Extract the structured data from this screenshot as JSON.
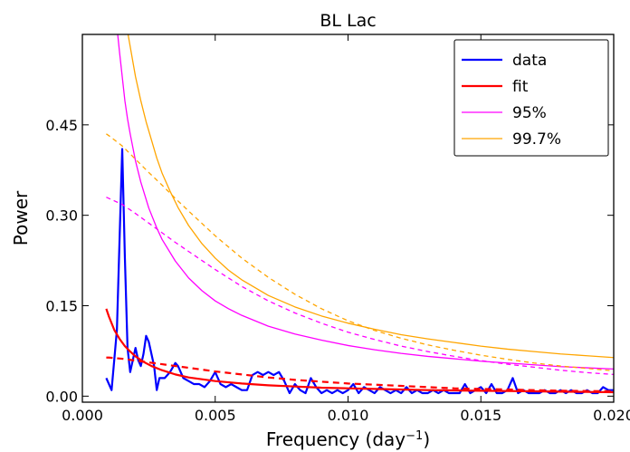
{
  "chart_data": {
    "type": "line",
    "title": "BL Lac",
    "xlabel": "Frequency (day",
    "xlabel_sup": "−1",
    "xlabel_close": ")",
    "ylabel": "Power",
    "xlim": [
      0.0,
      0.02
    ],
    "ylim": [
      -0.01,
      0.6
    ],
    "x_ticks": [
      0.0,
      0.005,
      0.01,
      0.015,
      0.02
    ],
    "x_tick_labels": [
      "0.000",
      "0.005",
      "0.010",
      "0.015",
      "0.020"
    ],
    "y_ticks": [
      0.0,
      0.15,
      0.3,
      0.45
    ],
    "y_tick_labels": [
      "0.00",
      "0.15",
      "0.30",
      "0.45"
    ],
    "grid": false,
    "legend_position": "top-right",
    "legend": [
      {
        "label": "data",
        "color": "#0000ff"
      },
      {
        "label": "fit",
        "color": "#ff0000"
      },
      {
        "label": "95%",
        "color": "#ff00ff"
      },
      {
        "label": "99.7%",
        "color": "#ffa500"
      }
    ],
    "series": [
      {
        "name": "data",
        "color": "#0000ff",
        "style": "solid",
        "x": [
          0.0009,
          0.0011,
          0.0013,
          0.0015,
          0.0016,
          0.0017,
          0.0018,
          0.0019,
          0.002,
          0.0021,
          0.0022,
          0.0023,
          0.0024,
          0.0025,
          0.0026,
          0.0027,
          0.0028,
          0.0029,
          0.0031,
          0.0033,
          0.0035,
          0.0036,
          0.0038,
          0.004,
          0.0042,
          0.0044,
          0.0046,
          0.0048,
          0.005,
          0.0052,
          0.0054,
          0.0056,
          0.0058,
          0.006,
          0.0062,
          0.0064,
          0.0066,
          0.0068,
          0.007,
          0.0072,
          0.0074,
          0.0076,
          0.0078,
          0.008,
          0.0082,
          0.0084,
          0.0086,
          0.0088,
          0.009,
          0.0092,
          0.0094,
          0.0096,
          0.0098,
          0.01,
          0.0102,
          0.0104,
          0.0106,
          0.0108,
          0.011,
          0.0112,
          0.0114,
          0.0116,
          0.0118,
          0.012,
          0.0122,
          0.0124,
          0.0126,
          0.0128,
          0.013,
          0.0132,
          0.0134,
          0.0136,
          0.0138,
          0.014,
          0.0142,
          0.0144,
          0.0146,
          0.0148,
          0.015,
          0.0152,
          0.0154,
          0.0156,
          0.0158,
          0.016,
          0.0162,
          0.0164,
          0.0166,
          0.0168,
          0.017,
          0.0172,
          0.0174,
          0.0176,
          0.0178,
          0.018,
          0.0182,
          0.0184,
          0.0186,
          0.0188,
          0.019,
          0.0192,
          0.0194,
          0.0196,
          0.0198,
          0.02
        ],
        "y": [
          0.03,
          0.01,
          0.11,
          0.41,
          0.23,
          0.08,
          0.04,
          0.06,
          0.08,
          0.06,
          0.05,
          0.07,
          0.1,
          0.09,
          0.07,
          0.05,
          0.01,
          0.03,
          0.03,
          0.04,
          0.055,
          0.05,
          0.03,
          0.025,
          0.02,
          0.02,
          0.015,
          0.025,
          0.04,
          0.02,
          0.015,
          0.02,
          0.015,
          0.01,
          0.01,
          0.035,
          0.04,
          0.035,
          0.04,
          0.035,
          0.04,
          0.025,
          0.005,
          0.02,
          0.01,
          0.005,
          0.03,
          0.015,
          0.005,
          0.01,
          0.005,
          0.01,
          0.005,
          0.01,
          0.02,
          0.005,
          0.015,
          0.01,
          0.005,
          0.015,
          0.01,
          0.005,
          0.01,
          0.005,
          0.015,
          0.005,
          0.01,
          0.005,
          0.005,
          0.01,
          0.005,
          0.01,
          0.005,
          0.005,
          0.005,
          0.02,
          0.005,
          0.01,
          0.015,
          0.005,
          0.02,
          0.005,
          0.005,
          0.01,
          0.03,
          0.005,
          0.01,
          0.005,
          0.005,
          0.005,
          0.01,
          0.005,
          0.005,
          0.01,
          0.005,
          0.01,
          0.005,
          0.005,
          0.01,
          0.005,
          0.005,
          0.015,
          0.01,
          0.01
        ]
      },
      {
        "name": "fit",
        "color": "#ff0000",
        "style": "solid",
        "x": [
          0.0009,
          0.001,
          0.0012,
          0.0014,
          0.0016,
          0.0018,
          0.002,
          0.0023,
          0.0026,
          0.003,
          0.0035,
          0.004,
          0.0045,
          0.005,
          0.0055,
          0.006,
          0.007,
          0.008,
          0.009,
          0.01,
          0.011,
          0.012,
          0.013,
          0.014,
          0.015,
          0.016,
          0.017,
          0.018,
          0.019,
          0.02
        ],
        "y": [
          0.145,
          0.132,
          0.11,
          0.095,
          0.083,
          0.074,
          0.066,
          0.057,
          0.05,
          0.043,
          0.036,
          0.031,
          0.028,
          0.025,
          0.023,
          0.021,
          0.018,
          0.016,
          0.014,
          0.013,
          0.012,
          0.011,
          0.01,
          0.0095,
          0.009,
          0.0085,
          0.008,
          0.0075,
          0.007,
          0.0065
        ]
      },
      {
        "color": "#ff0000",
        "style": "dashed",
        "x": [
          0.0009,
          0.001,
          0.0015,
          0.002,
          0.0025,
          0.003,
          0.0035,
          0.004,
          0.005,
          0.006,
          0.007,
          0.008,
          0.009,
          0.01,
          0.011,
          0.012,
          0.013,
          0.014,
          0.015,
          0.016,
          0.017,
          0.018,
          0.019,
          0.02
        ],
        "y": [
          0.064,
          0.064,
          0.062,
          0.059,
          0.056,
          0.053,
          0.05,
          0.047,
          0.041,
          0.036,
          0.031,
          0.027,
          0.024,
          0.021,
          0.019,
          0.017,
          0.015,
          0.013,
          0.012,
          0.011,
          0.01,
          0.009,
          0.0085,
          0.008
        ]
      },
      {
        "name": "95%",
        "color": "#ff00ff",
        "style": "solid",
        "x": [
          0.00133,
          0.0014,
          0.0015,
          0.0016,
          0.0017,
          0.0018,
          0.002,
          0.0022,
          0.0025,
          0.0028,
          0.003,
          0.0035,
          0.004,
          0.0045,
          0.005,
          0.0055,
          0.006,
          0.007,
          0.008,
          0.009,
          0.01,
          0.011,
          0.012,
          0.013,
          0.014,
          0.015,
          0.016,
          0.017,
          0.018,
          0.019,
          0.02
        ],
        "y": [
          0.6,
          0.57,
          0.53,
          0.49,
          0.46,
          0.435,
          0.39,
          0.355,
          0.312,
          0.279,
          0.26,
          0.224,
          0.196,
          0.175,
          0.158,
          0.145,
          0.134,
          0.116,
          0.103,
          0.093,
          0.084,
          0.077,
          0.071,
          0.066,
          0.062,
          0.058,
          0.055,
          0.052,
          0.049,
          0.047,
          0.045
        ]
      },
      {
        "color": "#ff00ff",
        "style": "dashed",
        "x": [
          0.0009,
          0.001,
          0.0015,
          0.002,
          0.0025,
          0.003,
          0.0035,
          0.004,
          0.005,
          0.006,
          0.007,
          0.008,
          0.009,
          0.01,
          0.011,
          0.012,
          0.013,
          0.014,
          0.015,
          0.016,
          0.017,
          0.018,
          0.019,
          0.02
        ],
        "y": [
          0.33,
          0.328,
          0.318,
          0.303,
          0.287,
          0.271,
          0.255,
          0.24,
          0.21,
          0.182,
          0.158,
          0.138,
          0.121,
          0.106,
          0.094,
          0.083,
          0.074,
          0.066,
          0.059,
          0.053,
          0.048,
          0.043,
          0.039,
          0.036
        ]
      },
      {
        "name": "99.7%",
        "color": "#ffa500",
        "style": "solid",
        "x": [
          0.00172,
          0.0018,
          0.0019,
          0.002,
          0.0021,
          0.0022,
          0.0024,
          0.0026,
          0.0028,
          0.003,
          0.0033,
          0.0036,
          0.004,
          0.0045,
          0.005,
          0.0055,
          0.006,
          0.007,
          0.008,
          0.009,
          0.01,
          0.011,
          0.012,
          0.013,
          0.014,
          0.015,
          0.016,
          0.017,
          0.018,
          0.019,
          0.02
        ],
        "y": [
          0.6,
          0.58,
          0.555,
          0.53,
          0.51,
          0.49,
          0.455,
          0.425,
          0.395,
          0.37,
          0.34,
          0.313,
          0.283,
          0.253,
          0.229,
          0.209,
          0.193,
          0.167,
          0.148,
          0.133,
          0.121,
          0.111,
          0.102,
          0.095,
          0.089,
          0.083,
          0.078,
          0.074,
          0.07,
          0.067,
          0.064
        ]
      },
      {
        "color": "#ffa500",
        "style": "dashed",
        "x": [
          0.0009,
          0.001,
          0.0015,
          0.002,
          0.0025,
          0.003,
          0.0035,
          0.004,
          0.005,
          0.006,
          0.007,
          0.008,
          0.009,
          0.01,
          0.011,
          0.012,
          0.013,
          0.014,
          0.015,
          0.016,
          0.017,
          0.018,
          0.019,
          0.02
        ],
        "y": [
          0.435,
          0.432,
          0.415,
          0.393,
          0.371,
          0.35,
          0.328,
          0.307,
          0.266,
          0.229,
          0.197,
          0.169,
          0.145,
          0.125,
          0.109,
          0.096,
          0.085,
          0.076,
          0.068,
          0.061,
          0.055,
          0.05,
          0.046,
          0.042
        ]
      }
    ]
  }
}
